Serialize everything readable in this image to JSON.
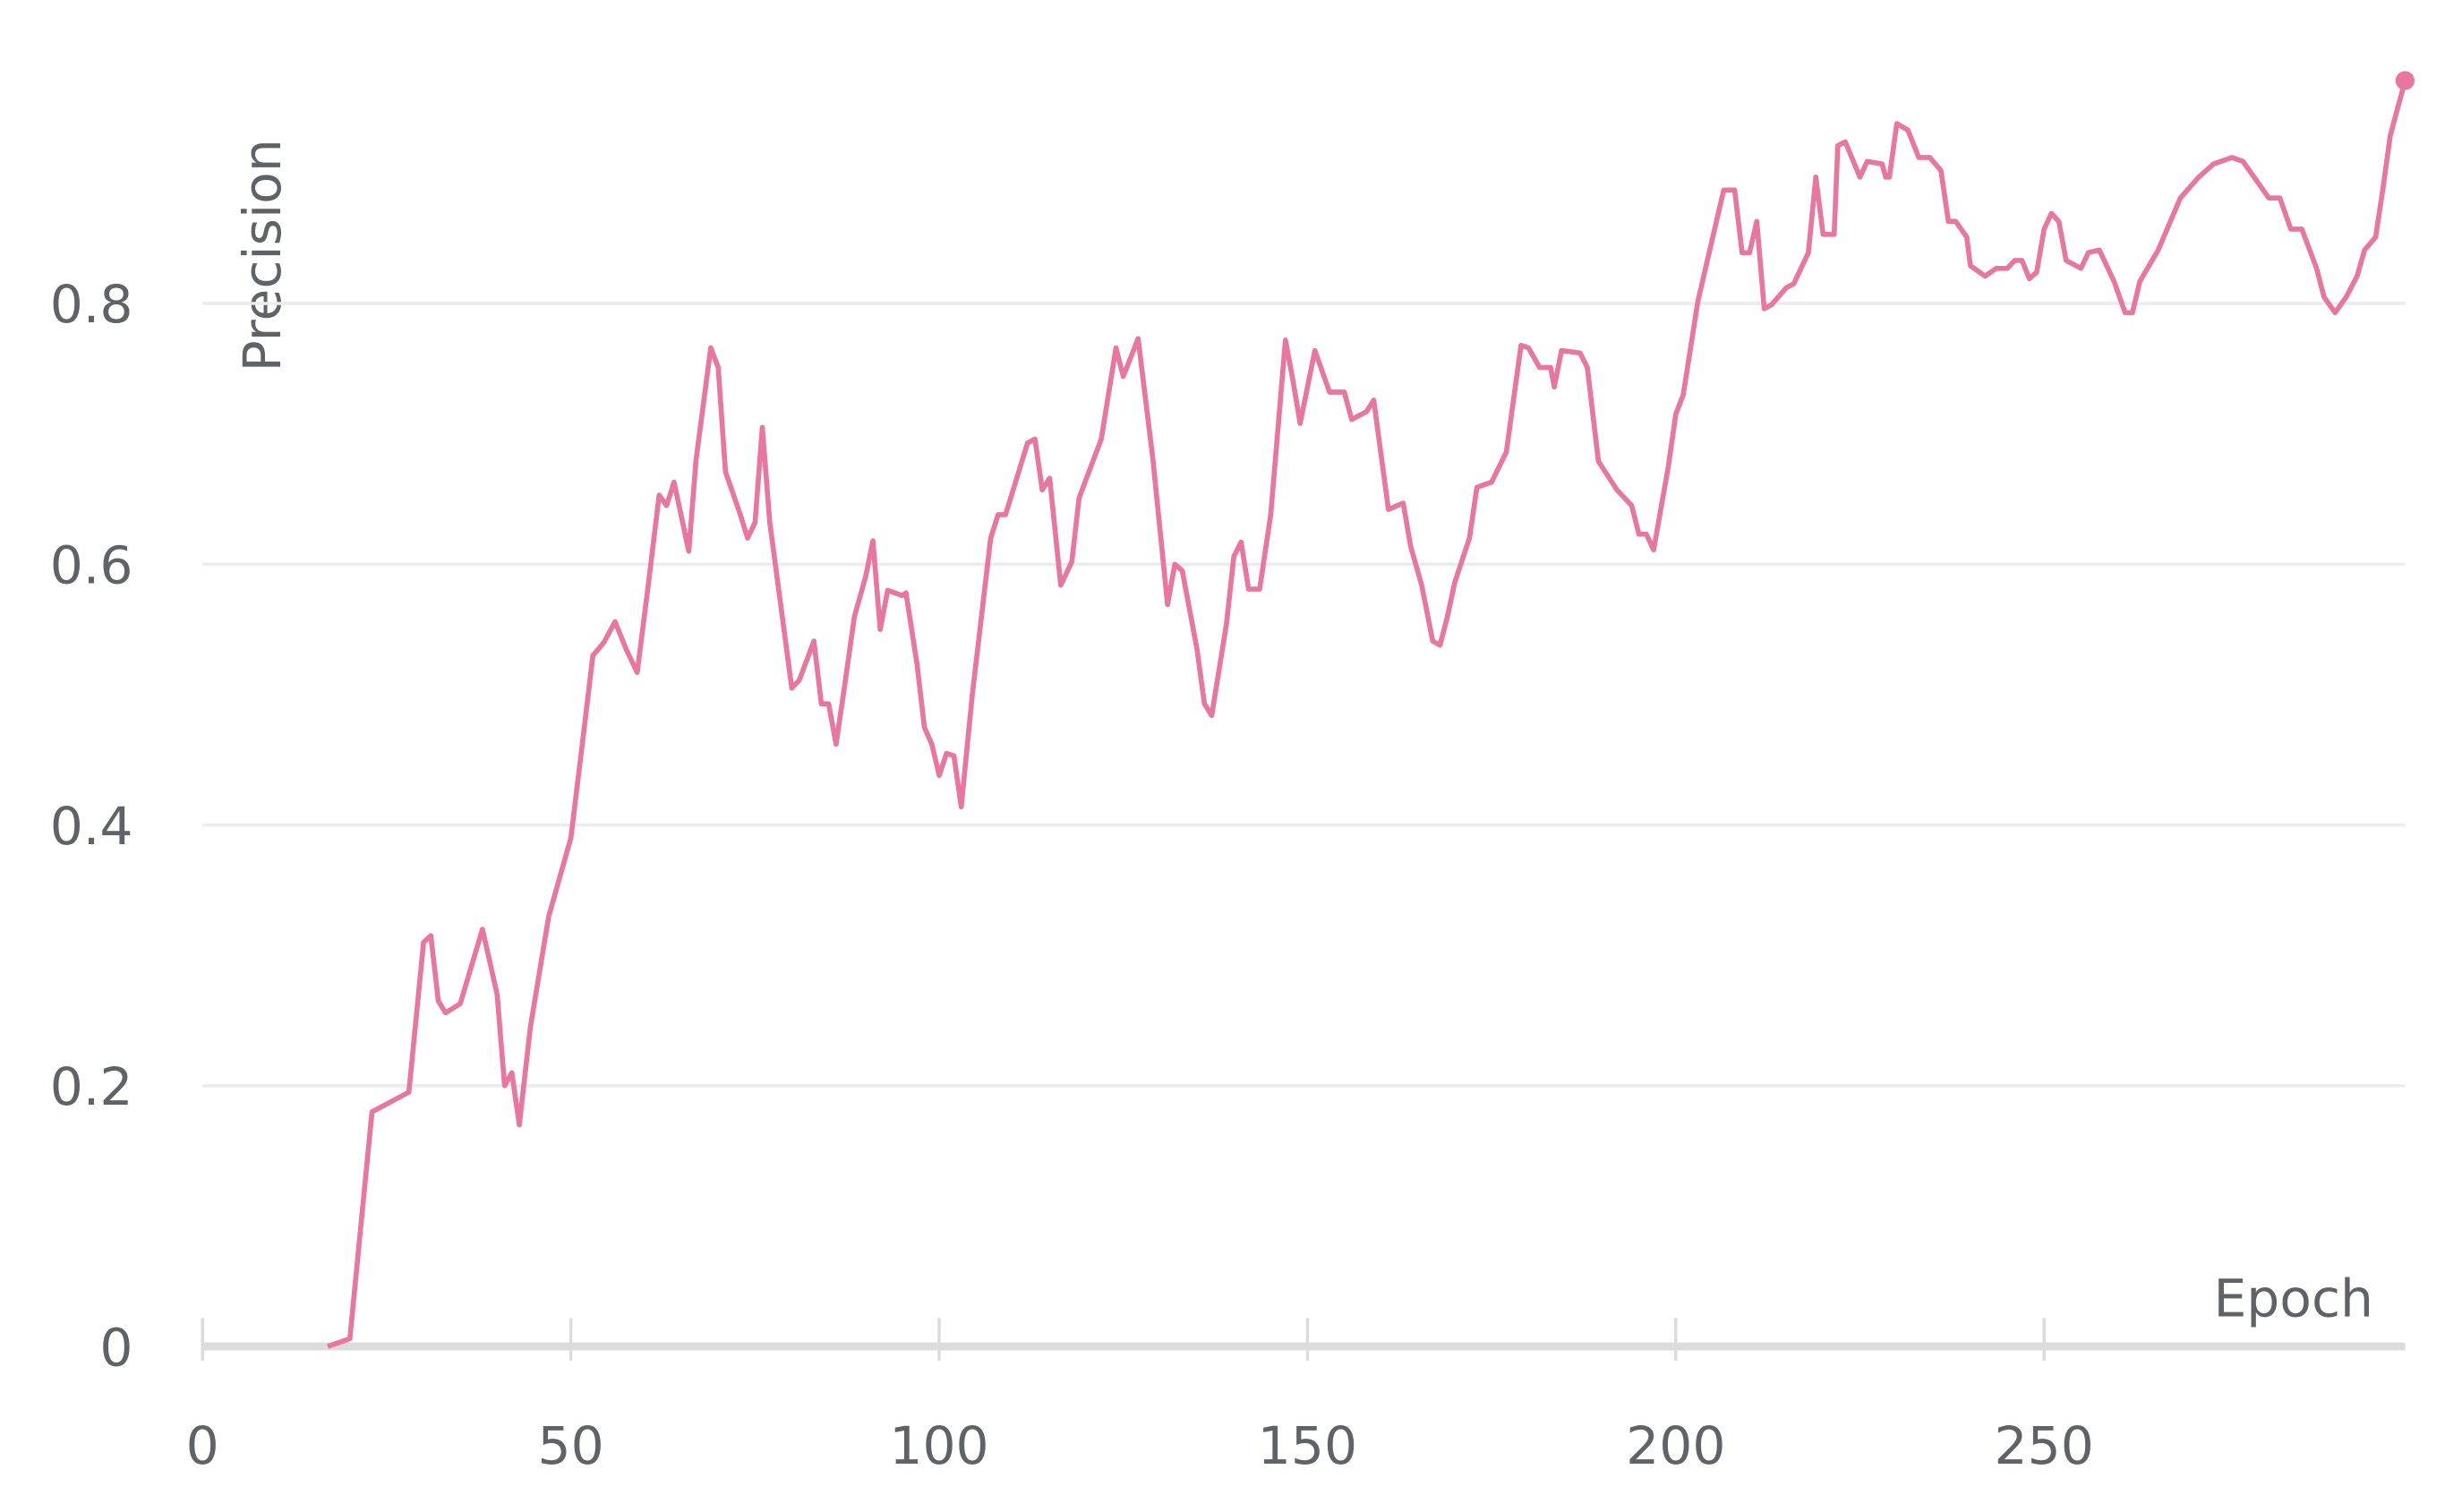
{
  "chart_data": {
    "type": "line",
    "x_label": "Epoch",
    "y_label": "Precision",
    "x": [
      17,
      20,
      23,
      28,
      30,
      31,
      32,
      33,
      35,
      38,
      40,
      41,
      42,
      43,
      44.5,
      47,
      50,
      51.5,
      53,
      54.5,
      56,
      57.5,
      59,
      60.5,
      62,
      63,
      64,
      66,
      67,
      69,
      70,
      71,
      73,
      74,
      75,
      76,
      77,
      80,
      81,
      83,
      84,
      85,
      86,
      87,
      88.5,
      90,
      91,
      92,
      93,
      95,
      95.5,
      97,
      98,
      99,
      100,
      101,
      102,
      103,
      104.5,
      107,
      108,
      109,
      112,
      113,
      114,
      115,
      116.5,
      118,
      119,
      122,
      124,
      125,
      127,
      129,
      131,
      132,
      133,
      135,
      136,
      137,
      139,
      140,
      141,
      142,
      143.5,
      145,
      147,
      148,
      149,
      151,
      153,
      155,
      156,
      158,
      159,
      161,
      163,
      164,
      165.5,
      167,
      168,
      169,
      170,
      172,
      173,
      175,
      177,
      179,
      180,
      181.5,
      183,
      183.5,
      184.5,
      187,
      188,
      189.5,
      192,
      194,
      195,
      196,
      197,
      199,
      200,
      201,
      203,
      206.5,
      208,
      209,
      210,
      211,
      212,
      213,
      215,
      216,
      218,
      219,
      220,
      221.5,
      222,
      223,
      225,
      226,
      228,
      228.5,
      229,
      230,
      231.5,
      233,
      234.5,
      236,
      237,
      238,
      239.5,
      240,
      242,
      243.5,
      245,
      246,
      247,
      248,
      249,
      250,
      251,
      252,
      253,
      255,
      256,
      257.5,
      259.5,
      261,
      262,
      263,
      265.5,
      268.5,
      271,
      273,
      275.5,
      277,
      279,
      280.5,
      282,
      283.5,
      285,
      287,
      288,
      289.5,
      291,
      292.5,
      293.5,
      295,
      296,
      297,
      299
    ],
    "values": [
      0,
      0.006,
      0.18,
      0.195,
      0.31,
      0.315,
      0.265,
      0.256,
      0.263,
      0.32,
      0.27,
      0.2,
      0.21,
      0.17,
      0.245,
      0.33,
      0.39,
      0.46,
      0.53,
      0.54,
      0.556,
      0.535,
      0.517,
      0.584,
      0.653,
      0.645,
      0.663,
      0.61,
      0.68,
      0.766,
      0.751,
      0.671,
      0.638,
      0.62,
      0.632,
      0.705,
      0.632,
      0.505,
      0.511,
      0.541,
      0.493,
      0.493,
      0.462,
      0.5,
      0.56,
      0.59,
      0.618,
      0.55,
      0.58,
      0.576,
      0.578,
      0.523,
      0.475,
      0.462,
      0.438,
      0.455,
      0.453,
      0.414,
      0.5,
      0.62,
      0.638,
      0.638,
      0.693,
      0.696,
      0.657,
      0.666,
      0.584,
      0.602,
      0.651,
      0.696,
      0.766,
      0.744,
      0.773,
      0.681,
      0.569,
      0.6,
      0.595,
      0.535,
      0.493,
      0.484,
      0.554,
      0.606,
      0.617,
      0.581,
      0.581,
      0.638,
      0.772,
      0.742,
      0.708,
      0.764,
      0.732,
      0.732,
      0.711,
      0.717,
      0.726,
      0.642,
      0.647,
      0.614,
      0.584,
      0.541,
      0.538,
      0.56,
      0.586,
      0.62,
      0.659,
      0.663,
      0.686,
      0.768,
      0.766,
      0.751,
      0.751,
      0.736,
      0.764,
      0.762,
      0.751,
      0.679,
      0.657,
      0.645,
      0.623,
      0.623,
      0.611,
      0.675,
      0.715,
      0.73,
      0.802,
      0.887,
      0.887,
      0.839,
      0.839,
      0.863,
      0.796,
      0.799,
      0.812,
      0.815,
      0.839,
      0.897,
      0.853,
      0.853,
      0.921,
      0.924,
      0.897,
      0.909,
      0.907,
      0.897,
      0.897,
      0.938,
      0.933,
      0.912,
      0.912,
      0.902,
      0.863,
      0.863,
      0.851,
      0.829,
      0.821,
      0.827,
      0.827,
      0.833,
      0.833,
      0.819,
      0.824,
      0.857,
      0.869,
      0.863,
      0.833,
      0.827,
      0.839,
      0.841,
      0.817,
      0.793,
      0.793,
      0.817,
      0.841,
      0.881,
      0.897,
      0.907,
      0.912,
      0.909,
      0.893,
      0.881,
      0.881,
      0.857,
      0.857,
      0.827,
      0.805,
      0.793,
      0.805,
      0.821,
      0.841,
      0.851,
      0.888,
      0.929,
      0.971
    ],
    "color": "#e8769e",
    "xlim": [
      0,
      299
    ],
    "ylim": [
      0,
      1
    ],
    "xticks": [
      0,
      50,
      100,
      150,
      200,
      250
    ],
    "yticks": [
      0,
      0.2,
      0.4,
      0.6,
      0.8
    ],
    "grid": true
  }
}
